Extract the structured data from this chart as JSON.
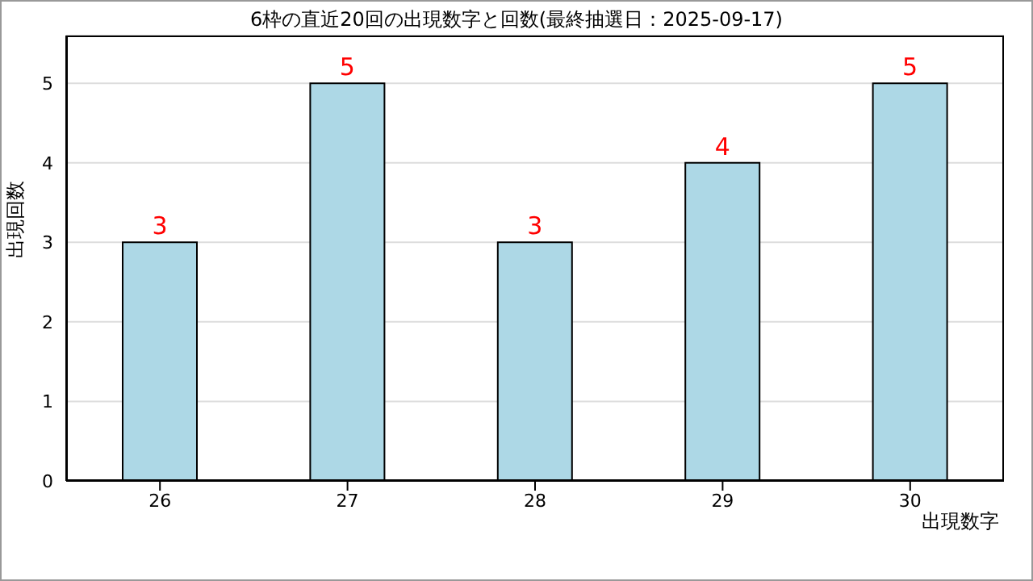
{
  "chart_data": {
    "type": "bar",
    "title": "6枠の直近20回の出現数字と回数(最終抽選日：2025-09-17)",
    "xlabel": "出現数字",
    "ylabel": "出現回数",
    "categories": [
      "26",
      "27",
      "28",
      "29",
      "30"
    ],
    "values": [
      3,
      5,
      3,
      4,
      5
    ],
    "color": "#add8e6",
    "ylim": [
      0,
      5.6
    ],
    "yticks": [
      0,
      1,
      2,
      3,
      4,
      5
    ],
    "grid": "y",
    "data_labels": true
  }
}
